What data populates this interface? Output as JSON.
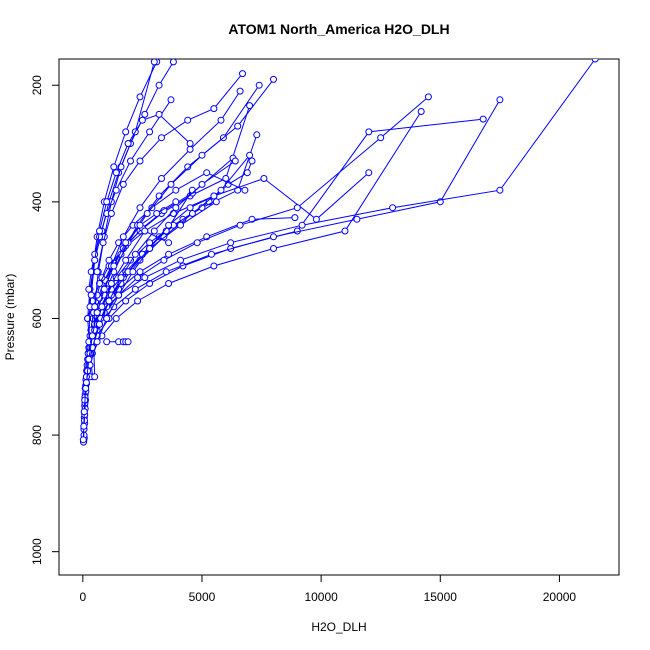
{
  "chart_data": {
    "type": "scatter",
    "title": "ATOM1 North_America H2O_DLH",
    "xlabel": "H2O_DLH",
    "ylabel": "Pressure (mbar)",
    "xlim": [
      -1000,
      22500
    ],
    "ylim": [
      1040,
      155
    ],
    "y_reversed": true,
    "x_ticks": [
      0,
      5000,
      10000,
      15000,
      20000
    ],
    "x_tick_labels": [
      "0",
      "5000",
      "10000",
      "15000",
      "20000"
    ],
    "y_ticks": [
      200,
      400,
      600,
      800,
      1000
    ],
    "y_tick_labels": [
      "200",
      "400",
      "600",
      "800",
      "1000"
    ],
    "grid": false,
    "color": "#0000ff",
    "marker": "open-circle",
    "series": [
      {
        "x": [
          40,
          50,
          60,
          80,
          100,
          150,
          200,
          300,
          500,
          800,
          1200,
          1800,
          2500,
          3200,
          4200,
          5300,
          6100,
          6900,
          7100
        ],
        "y": [
          810,
          790,
          770,
          750,
          730,
          700,
          670,
          640,
          610,
          580,
          550,
          520,
          490,
          460,
          430,
          400,
          370,
          350,
          330
        ]
      },
      {
        "x": [
          60,
          80,
          100,
          130,
          180,
          250,
          350,
          500,
          700,
          1000,
          1400,
          2000,
          2800,
          3800,
          5000,
          6500,
          7300
        ],
        "y": [
          805,
          780,
          755,
          725,
          700,
          670,
          640,
          610,
          585,
          560,
          530,
          500,
          470,
          440,
          410,
          380,
          285
        ]
      },
      {
        "x": [
          50,
          70,
          90,
          120,
          160,
          220,
          300,
          420,
          600,
          850,
          1200,
          1700,
          2400,
          3300,
          4500,
          6000,
          7000
        ],
        "y": [
          800,
          775,
          745,
          715,
          690,
          660,
          630,
          600,
          570,
          540,
          510,
          480,
          450,
          420,
          390,
          360,
          235
        ]
      },
      {
        "x": [
          30,
          50,
          80,
          110,
          150,
          200,
          280,
          380,
          520,
          700,
          950,
          1300,
          1800,
          2500,
          3400,
          4600,
          6300
        ],
        "y": [
          812,
          790,
          765,
          740,
          712,
          685,
          655,
          625,
          595,
          565,
          535,
          505,
          475,
          445,
          415,
          385,
          325
        ]
      },
      {
        "x": [
          20,
          40,
          60,
          90,
          130,
          180,
          250,
          340,
          450,
          600,
          800,
          1100,
          1500,
          2100,
          2900,
          3900,
          5200,
          6800
        ],
        "y": [
          808,
          785,
          760,
          735,
          705,
          680,
          650,
          620,
          590,
          560,
          530,
          500,
          470,
          440,
          410,
          380,
          350,
          380
        ]
      },
      {
        "x": [
          200,
          400,
          700,
          1100,
          1700,
          2600,
          3800,
          5500,
          7600,
          9800,
          12000
        ],
        "y": [
          600,
          570,
          540,
          510,
          480,
          450,
          420,
          390,
          360,
          430,
          350
        ]
      },
      {
        "x": [
          300,
          500,
          900,
          1500,
          2400,
          3600,
          5200,
          7100,
          8900
        ],
        "y": [
          640,
          610,
          580,
          550,
          520,
          490,
          460,
          430,
          427
        ]
      },
      {
        "x": [
          500,
          900,
          1500,
          2300,
          3400,
          4800,
          6600,
          9000,
          12500,
          14500
        ],
        "y": [
          620,
          590,
          560,
          530,
          500,
          470,
          440,
          410,
          290,
          220
        ]
      },
      {
        "x": [
          400,
          800,
          1400,
          2300,
          3600,
          5500,
          8000,
          11000,
          14200
        ],
        "y": [
          660,
          630,
          600,
          570,
          540,
          510,
          480,
          450,
          245
        ]
      },
      {
        "x": [
          600,
          1100,
          1800,
          2800,
          4200,
          6200,
          9000,
          12000,
          16800
        ],
        "y": [
          630,
          600,
          570,
          540,
          510,
          480,
          450,
          280,
          258
        ]
      },
      {
        "x": [
          700,
          1300,
          2200,
          3500,
          5400,
          8000,
          11500,
          15000,
          17500
        ],
        "y": [
          610,
          580,
          550,
          520,
          490,
          460,
          430,
          400,
          225
        ]
      },
      {
        "x": [
          800,
          1500,
          2600,
          4100,
          6200,
          9200,
          13000,
          17500,
          21500
        ],
        "y": [
          590,
          560,
          530,
          500,
          470,
          440,
          410,
          380,
          155
        ]
      },
      {
        "x": [
          1000,
          1500,
          1700,
          1800,
          1900
        ],
        "y": [
          640,
          640,
          640,
          640,
          640
        ]
      },
      {
        "x": [
          400,
          300,
          200,
          300,
          500,
          800,
          1100,
          1500,
          2000,
          2600,
          3200,
          3800
        ],
        "y": [
          700,
          650,
          600,
          550,
          500,
          450,
          400,
          350,
          300,
          250,
          200,
          160
        ]
      },
      {
        "x": [
          300,
          250,
          300,
          400,
          600,
          900,
          1300,
          1800,
          2400,
          3100
        ],
        "y": [
          700,
          640,
          580,
          520,
          460,
          400,
          340,
          280,
          220,
          160
        ]
      },
      {
        "x": [
          500,
          450,
          500,
          650,
          900,
          1200,
          1600,
          2200,
          3000
        ],
        "y": [
          700,
          640,
          580,
          520,
          460,
          400,
          340,
          280,
          160
        ]
      },
      {
        "x": [
          900,
          1200,
          1700,
          2400,
          3300,
          4500,
          5800,
          6600
        ],
        "y": [
          560,
          510,
          460,
          410,
          360,
          310,
          260,
          210
        ]
      },
      {
        "x": [
          1100,
          1600,
          2300,
          3200,
          4400,
          5900,
          7400
        ],
        "y": [
          540,
          490,
          440,
          390,
          340,
          290,
          200
        ]
      },
      {
        "x": [
          1300,
          1900,
          2700,
          3700,
          5000,
          6500,
          8000
        ],
        "y": [
          520,
          470,
          420,
          370,
          320,
          270,
          190
        ]
      },
      {
        "x": [
          250,
          350,
          500,
          700,
          1000,
          1400,
          2000,
          2800,
          3700
        ],
        "y": [
          550,
          520,
          490,
          460,
          420,
          380,
          330,
          280,
          225
        ]
      },
      {
        "x": [
          350,
          500,
          700,
          1000,
          1400,
          1900,
          2500,
          3200,
          4500
        ],
        "y": [
          560,
          500,
          450,
          400,
          350,
          300,
          260,
          250,
          300
        ]
      },
      {
        "x": [
          600,
          850,
          1200,
          1700,
          2400,
          3300,
          4400,
          5500,
          6700
        ],
        "y": [
          520,
          470,
          420,
          370,
          330,
          290,
          260,
          240,
          180
        ]
      },
      {
        "x": [
          150,
          300,
          600,
          1000,
          1600,
          2400,
          3400,
          4600,
          5800,
          7000
        ],
        "y": [
          700,
          660,
          620,
          580,
          540,
          500,
          460,
          420,
          380,
          320
        ]
      },
      {
        "x": [
          100,
          200,
          400,
          700,
          1100,
          1700,
          2500,
          3500,
          4600
        ],
        "y": [
          720,
          690,
          650,
          610,
          570,
          530,
          490,
          450,
          380
        ]
      },
      {
        "x": [
          80,
          150,
          300,
          500,
          800,
          1200,
          1800,
          2600,
          3600
        ],
        "y": [
          740,
          700,
          660,
          620,
          580,
          540,
          500,
          450,
          470
        ]
      },
      {
        "x": [
          60,
          120,
          250,
          450,
          750,
          1200,
          1900,
          2800,
          4100,
          5600
        ],
        "y": [
          760,
          720,
          680,
          640,
          600,
          560,
          520,
          480,
          440,
          400
        ]
      },
      {
        "x": [
          200,
          400,
          700,
          1100,
          1600,
          2200,
          3000,
          3900,
          5000,
          6400
        ],
        "y": [
          690,
          650,
          610,
          570,
          530,
          490,
          450,
          410,
          370,
          330
        ]
      },
      {
        "x": [
          300,
          600,
          1000,
          1500,
          2100,
          2800,
          3600,
          4500,
          5500
        ],
        "y": [
          680,
          640,
          600,
          560,
          520,
          480,
          440,
          410,
          390
        ]
      },
      {
        "x": [
          150,
          250,
          400,
          600,
          900,
          1300,
          1800,
          2400,
          3100,
          3900
        ],
        "y": [
          710,
          670,
          630,
          590,
          550,
          510,
          470,
          440,
          420,
          400
        ]
      }
    ]
  }
}
